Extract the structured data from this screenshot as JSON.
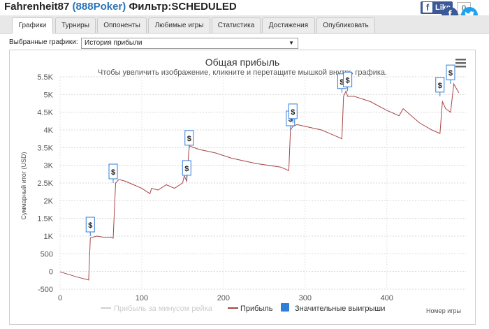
{
  "header": {
    "player": "Fahrenheit87",
    "site": "(888Poker)",
    "filter": "Фильтр:SCHEDULED",
    "like_label": "Like",
    "like_count": "0"
  },
  "tabs": [
    "Графики",
    "Турниры",
    "Оппоненты",
    "Любимые игры",
    "Статистика",
    "Достижения",
    "Опубликовать"
  ],
  "filter_bar": {
    "label": "Выбранные графики:",
    "selected": "История прибыли"
  },
  "icons": {
    "facebook": "facebook-icon",
    "twitter": "twitter-icon",
    "menu": "hamburger-menu-icon",
    "dropdown": "chevron-down-icon"
  },
  "colors": {
    "profit_line": "#a84444",
    "rake_line": "#d0d0d0",
    "big_win": "#2f7ed8",
    "title": "#333333"
  },
  "chart_data": {
    "type": "line",
    "title": "Общая прибыль",
    "subtitle": "Чтобы увеличить изображение, кликните и перетащите мышкой внутрь графика.",
    "xlabel": "Номер игры",
    "ylabel": "Суммарный итог (USD)",
    "xlim": [
      0,
      490
    ],
    "ylim": [
      -500,
      5500
    ],
    "xticks": [
      "0",
      "100",
      "200",
      "300",
      "400"
    ],
    "yticks": [
      "-500",
      "0",
      "500",
      "1K",
      "1.5K",
      "2K",
      "2.5K",
      "3K",
      "3.5K",
      "4K",
      "4.5K",
      "5K",
      "5.5K"
    ],
    "series": [
      {
        "name": "Прибыль",
        "x": [
          0,
          20,
          35,
          37,
          45,
          55,
          62,
          65,
          68,
          72,
          80,
          90,
          100,
          110,
          112,
          120,
          130,
          140,
          150,
          152,
          155,
          158,
          170,
          190,
          210,
          240,
          270,
          275,
          280,
          282,
          285,
          290,
          300,
          310,
          320,
          330,
          340,
          345,
          347,
          350,
          352,
          360,
          380,
          400,
          415,
          420,
          440,
          455,
          465,
          468,
          472,
          478,
          482,
          488
        ],
        "y": [
          -10,
          -150,
          -240,
          950,
          1000,
          960,
          970,
          940,
          2500,
          2600,
          2550,
          2450,
          2350,
          2200,
          2350,
          2300,
          2450,
          2350,
          2500,
          2700,
          2550,
          3550,
          3450,
          3350,
          3200,
          3050,
          2950,
          2900,
          2850,
          4000,
          4100,
          4150,
          4100,
          4050,
          4000,
          3900,
          3800,
          3750,
          4950,
          5100,
          4950,
          4950,
          4800,
          4550,
          4400,
          4600,
          4200,
          4000,
          3900,
          4800,
          4600,
          4500,
          5300,
          5050
        ]
      },
      {
        "name": "Прибыль за минусом рейка",
        "x": [],
        "y": []
      },
      {
        "name": "Значительные выигрыши",
        "x": [
          37,
          65,
          155,
          158,
          282,
          285,
          345,
          352,
          465,
          478
        ],
        "y": [
          1000,
          2500,
          2600,
          3450,
          4000,
          4200,
          5050,
          5100,
          4950,
          5300
        ]
      }
    ],
    "big_win_marker": "$",
    "legend_position": "bottom",
    "grid": true
  }
}
